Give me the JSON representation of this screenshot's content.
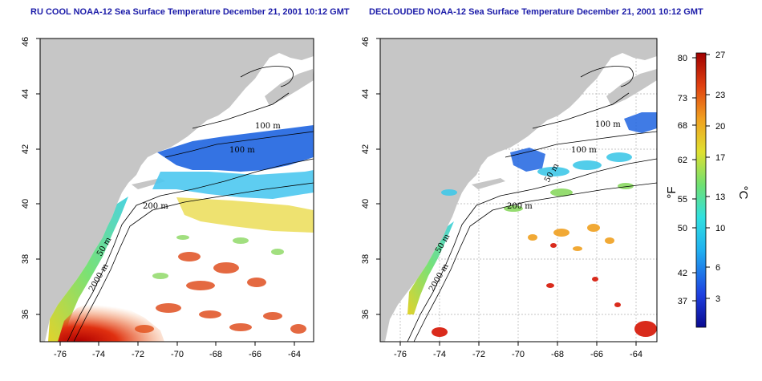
{
  "panels": [
    {
      "id": "left",
      "title": "RU COOL NOAA-12 Sea Surface Temperature December 21, 2001 10:12 GMT"
    },
    {
      "id": "right",
      "title": "DECLOUDED NOAA-12 Sea Surface Temperature December 21, 2001 10:12 GMT"
    }
  ],
  "axes": {
    "x_ticks": [
      "-76",
      "-74",
      "-72",
      "-70",
      "-68",
      "-66",
      "-64"
    ],
    "y_ticks": [
      "36",
      "38",
      "40",
      "42",
      "44",
      "46"
    ],
    "lon_range": [
      -77,
      -63
    ],
    "lat_range": [
      35,
      46
    ]
  },
  "contour_labels": {
    "left": [
      "100 m",
      "100 m",
      "200 m",
      "50 m",
      "2000 m"
    ],
    "right": [
      "100 m",
      "100 m",
      "50 m",
      "200 m",
      "50 m",
      "2000 m"
    ]
  },
  "colorbar": {
    "fahrenheit_label": "°F",
    "celsius_label": "°C",
    "fahrenheit_ticks": [
      "80",
      "73",
      "68",
      "62",
      "55",
      "50",
      "42",
      "37"
    ],
    "celsius_ticks": [
      "27",
      "23",
      "20",
      "17",
      "13",
      "10",
      "6",
      "3"
    ]
  },
  "colors": {
    "land": "#c6c6c6",
    "ocean": "#ffffff",
    "title": "#1a1aa8",
    "cold": "#1e5ad8",
    "warm": "#d82010"
  }
}
